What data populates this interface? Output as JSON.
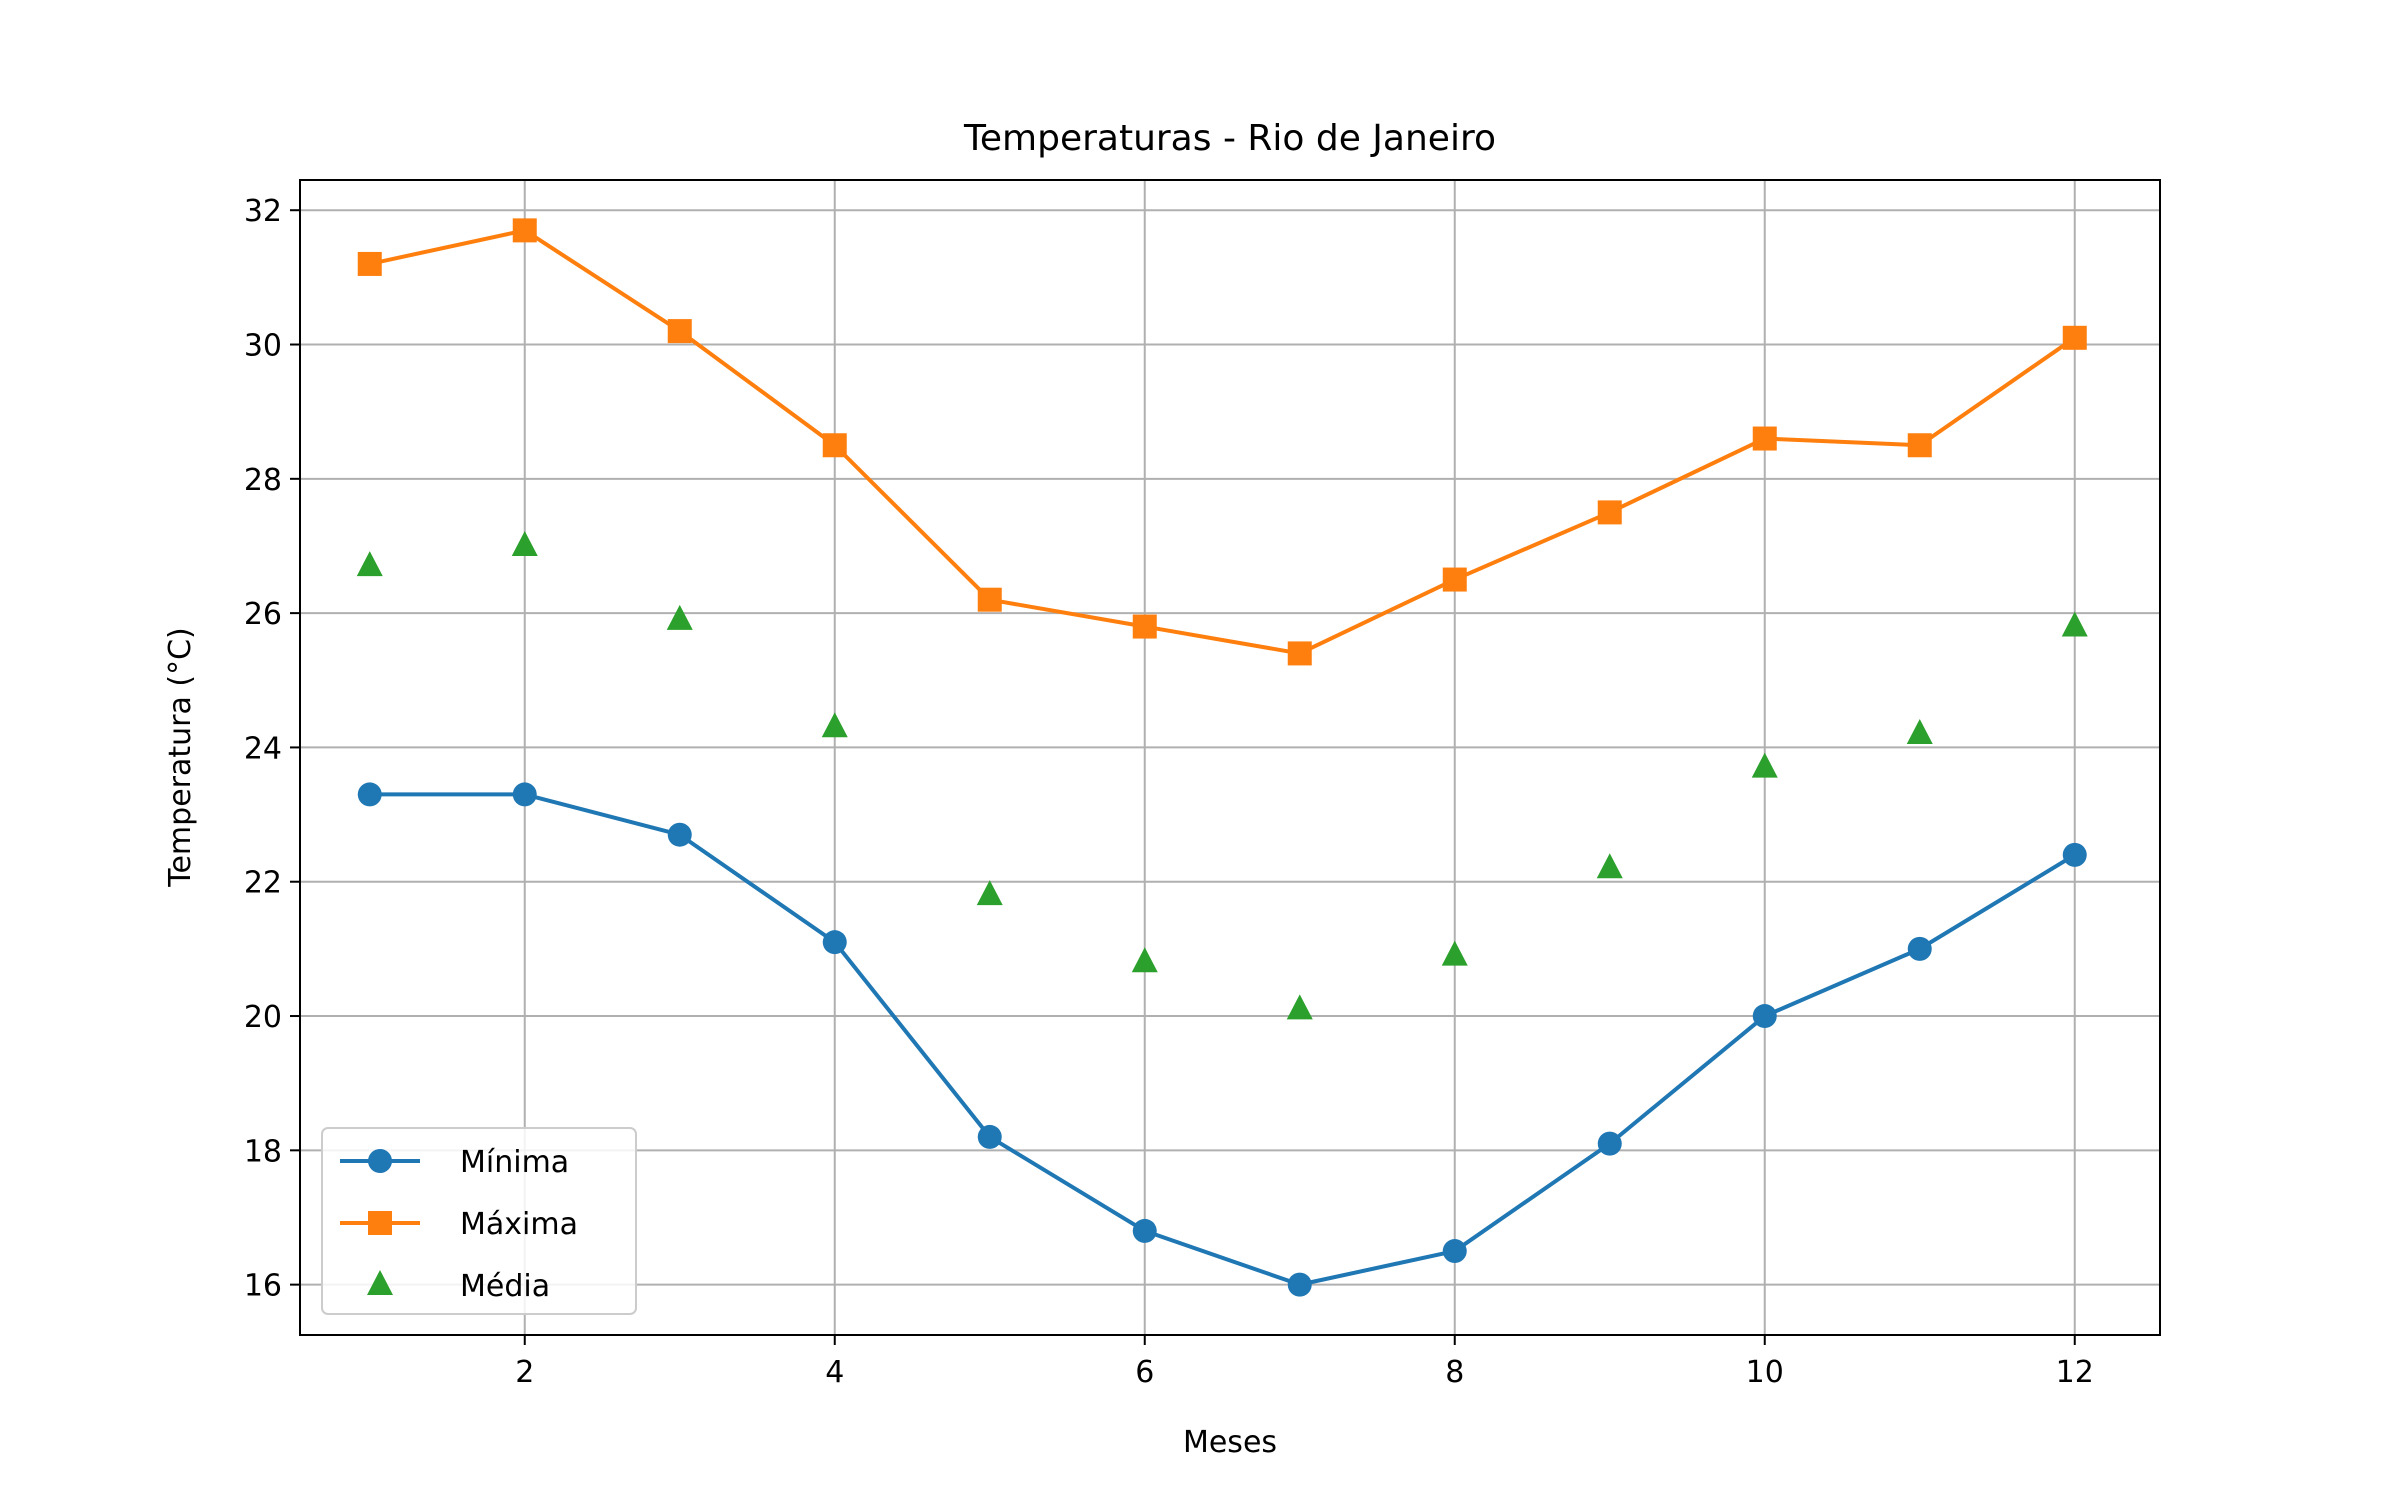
{
  "chart_data": {
    "type": "line",
    "title": "Temperaturas - Rio de Janeiro",
    "xlabel": "Meses",
    "ylabel": "Temperatura (°C)",
    "xlim": [
      0.55,
      12.55
    ],
    "ylim": [
      15.25,
      32.45
    ],
    "xticks": [
      2,
      4,
      6,
      8,
      10,
      12
    ],
    "yticks": [
      16,
      18,
      20,
      22,
      24,
      26,
      28,
      30,
      32
    ],
    "grid": true,
    "legend_position": "lower-left",
    "x": [
      1,
      2,
      3,
      4,
      5,
      6,
      7,
      8,
      9,
      10,
      11,
      12
    ],
    "series": [
      {
        "name": "Mínima",
        "values": [
          23.3,
          23.3,
          22.7,
          21.1,
          18.2,
          16.8,
          16.0,
          16.5,
          18.1,
          20.0,
          21.0,
          22.4
        ],
        "color": "#1f77b4",
        "marker": "circle",
        "line": true
      },
      {
        "name": "Máxima",
        "values": [
          31.2,
          31.7,
          30.2,
          28.5,
          26.2,
          25.8,
          25.4,
          26.5,
          27.5,
          28.6,
          28.5,
          30.1
        ],
        "color": "#ff7f0e",
        "marker": "square",
        "line": true
      },
      {
        "name": "Média",
        "values": [
          26.7,
          27.0,
          25.9,
          24.3,
          21.8,
          20.8,
          20.1,
          20.9,
          22.2,
          23.7,
          24.2,
          25.8
        ],
        "color": "#2ca02c",
        "marker": "triangle",
        "line": false
      }
    ]
  }
}
